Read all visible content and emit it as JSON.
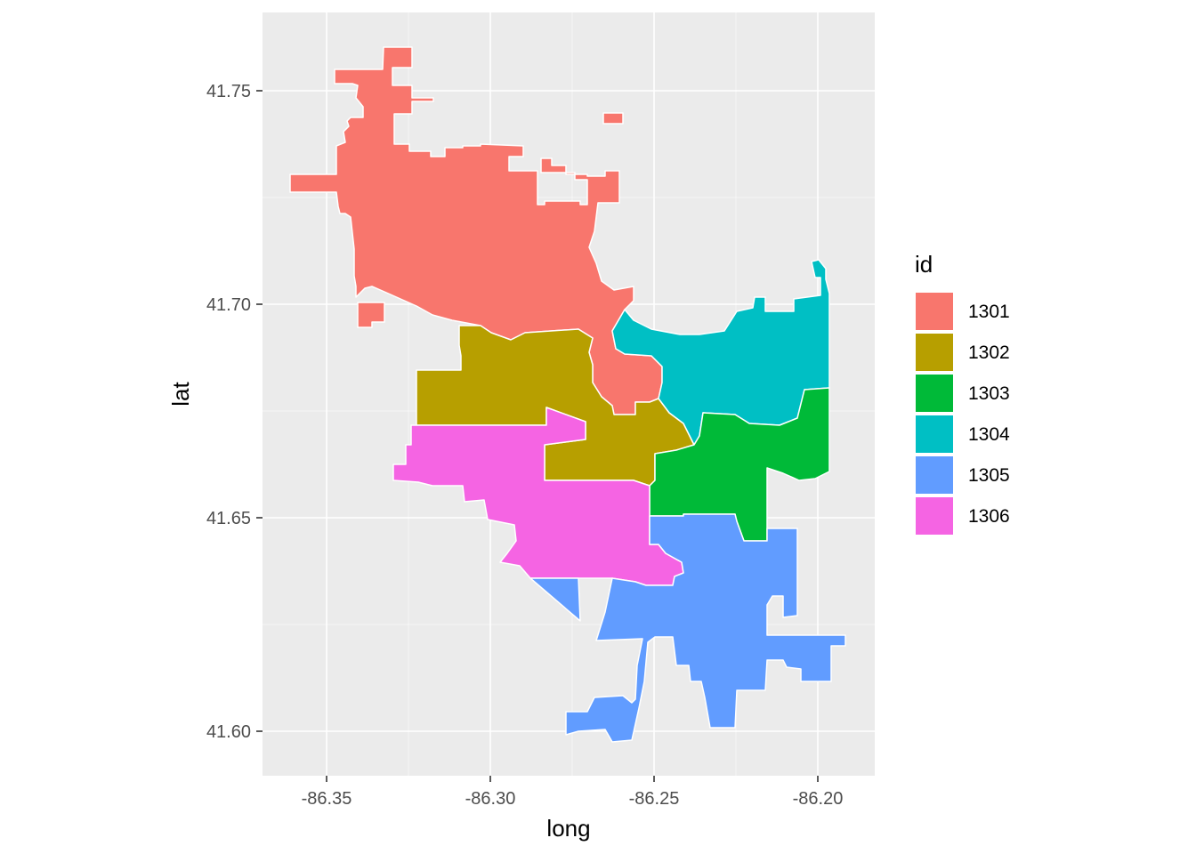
{
  "chart_data": {
    "type": "choropleth-map",
    "xlabel": "long",
    "ylabel": "lat",
    "x_ticks": [
      "-86.35",
      "-86.30",
      "-86.25",
      "-86.20"
    ],
    "y_ticks": [
      "41.75",
      "41.70",
      "41.65",
      "41.60"
    ],
    "xlim": [
      -86.37,
      -86.182
    ],
    "ylim": [
      41.59,
      41.769
    ],
    "grid": true,
    "legend": {
      "title": "id",
      "placement": "right",
      "items": [
        {
          "label": "1301",
          "color": "#F8766D"
        },
        {
          "label": "1302",
          "color": "#B79F00"
        },
        {
          "label": "1303",
          "color": "#00BA38"
        },
        {
          "label": "1304",
          "color": "#00BFC4"
        },
        {
          "label": "1305",
          "color": "#619CFF"
        },
        {
          "label": "1306",
          "color": "#F564E3"
        }
      ]
    },
    "panel_background": "#EBEBEB",
    "gridline_color": "#FFFFFF"
  }
}
